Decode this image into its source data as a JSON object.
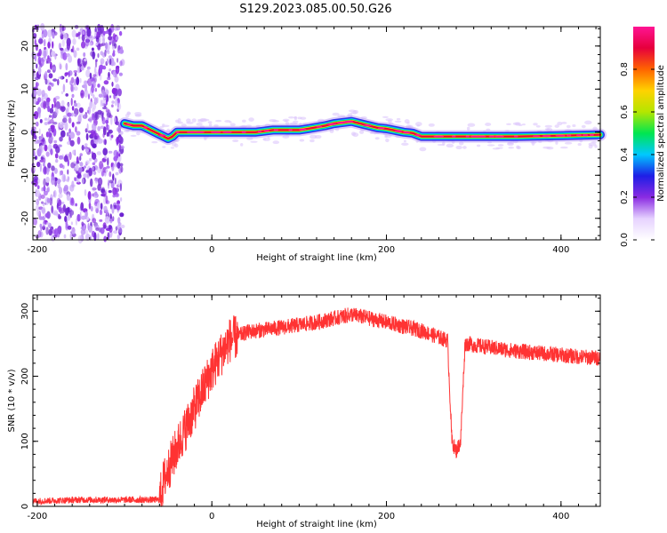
{
  "title": "S129.2023.085.00.50.G26",
  "chart_data": [
    {
      "type": "heatmap",
      "xlabel": "Height of straight line (km)",
      "ylabel": "Frequency (Hz)",
      "xlim": [
        -205,
        445
      ],
      "ylim": [
        -25,
        24.5
      ],
      "xticks": [
        -200,
        0,
        200,
        400
      ],
      "yticks": [
        -20,
        -10,
        0,
        10,
        20
      ],
      "colorbar": {
        "label": "Normalized spectral amplitude",
        "range": [
          0,
          1
        ],
        "ticks": [
          0.0,
          0.2,
          0.4,
          0.6,
          0.8
        ],
        "colors": [
          "#ffffff",
          "#e6d2ff",
          "#8a2be2",
          "#1e1ee6",
          "#00c8ff",
          "#00e650",
          "#b4e600",
          "#ffd200",
          "#ff6400",
          "#e6003c",
          "#ff1493"
        ]
      },
      "noise_region_x": [
        -205,
        -100
      ],
      "series": [
        {
          "x": [
            -100,
            -90,
            -80,
            -70,
            -60,
            -50,
            -45,
            -40,
            -30,
            -20,
            0,
            50,
            70,
            80,
            100,
            110,
            130,
            140,
            160,
            170,
            190,
            200,
            220,
            230,
            240,
            300,
            350,
            400,
            445
          ],
          "values": [
            2,
            1.5,
            1.5,
            0.5,
            -0.5,
            -1.5,
            -1,
            0,
            0,
            0,
            0,
            0,
            0.5,
            0.5,
            0.5,
            0.8,
            1.5,
            2,
            2.5,
            2,
            1,
            0.8,
            0,
            -0.2,
            -1,
            -1,
            -1,
            -0.8,
            -0.6
          ]
        }
      ]
    },
    {
      "type": "line",
      "xlabel": "Height of straight line (km)",
      "ylabel": "SNR (10 * v/v)",
      "xlim": [
        -205,
        445
      ],
      "ylim": [
        0,
        325
      ],
      "xticks": [
        -200,
        0,
        200,
        400
      ],
      "yticks": [
        0,
        100,
        200,
        300
      ],
      "color": "#ff3333",
      "series": [
        {
          "x": [
            -205,
            -150,
            -100,
            -60,
            -55,
            -40,
            -20,
            0,
            20,
            40,
            80,
            120,
            160,
            200,
            240,
            270,
            275,
            280,
            285,
            290,
            295,
            300,
            340,
            380,
            420,
            445
          ],
          "values": [
            8,
            10,
            10,
            10,
            40,
            90,
            150,
            210,
            255,
            268,
            275,
            283,
            295,
            283,
            270,
            255,
            100,
            85,
            100,
            250,
            250,
            248,
            240,
            235,
            230,
            228
          ]
        }
      ]
    }
  ]
}
